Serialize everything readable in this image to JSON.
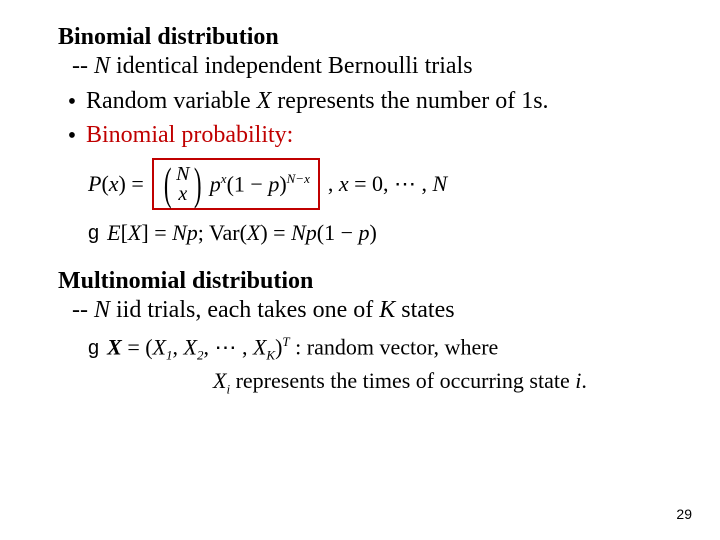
{
  "colors": {
    "text": "#000000",
    "accent_red": "#c00000",
    "background": "#ffffff"
  },
  "typography": {
    "body_family": "Times New Roman",
    "body_size_pt": 18,
    "math_italic": true
  },
  "section1": {
    "title": "Binomial distribution",
    "subtitle_prefix": "-- ",
    "subtitle_var": "N",
    "subtitle_rest": " identical independent Bernoulli trials",
    "bullet1_pre": "Random variable ",
    "bullet1_var": "X",
    "bullet1_post": " represents the number of 1s.",
    "bullet2": "Binomial probability:",
    "formula": {
      "lhs_P": "P",
      "lhs_open": "(",
      "lhs_x": "x",
      "lhs_close": ")",
      "eq": " = ",
      "binom_top": "N",
      "binom_bottom": "x",
      "p": "p",
      "exp_x": "x",
      "oneminus_open": "(1 − ",
      "oneminus_p": "p",
      "oneminus_close": ")",
      "exp_Nx": "N−x",
      "after_comma": ",   ",
      "range_x": "x",
      "range_eq": " = 0, ⋯ , ",
      "range_N": "N"
    },
    "stats": {
      "E_lhs": "E",
      "E_bracket_open": "[",
      "E_X": "X",
      "E_bracket_close": "]",
      "E_eq": " = ",
      "E_rhs_N": "N",
      "E_rhs_p": "p",
      "sep": ";   ",
      "Var": "Var",
      "Var_open": "(",
      "Var_X": "X",
      "Var_close": ")",
      "Var_eq": " = ",
      "Var_N": "N",
      "Var_p1": "p",
      "Var_paren_open": "(1 − ",
      "Var_p2": "p",
      "Var_paren_close": ")"
    }
  },
  "section2": {
    "title": "Multinomial distribution",
    "subtitle_prefix": "-- ",
    "subtitle_var": "N",
    "subtitle_mid": " iid trials, each takes one of ",
    "subtitle_K": "K",
    "subtitle_end": " states",
    "vector": {
      "X": "X",
      "eq": " = (",
      "X1": "X",
      "s1": "1",
      "c1": ", ",
      "X2": "X",
      "s2": "2",
      "c2": ", ⋯ , ",
      "XK": "X",
      "sK": "K",
      "close": ")",
      "T": "T",
      "colon": " :  ",
      "desc": "random vector, where"
    },
    "note_Xi": "X",
    "note_i": "i",
    "note_rest": " represents the times of occurring state ",
    "note_ivar": "i",
    "note_period": "."
  },
  "page_number": "29"
}
